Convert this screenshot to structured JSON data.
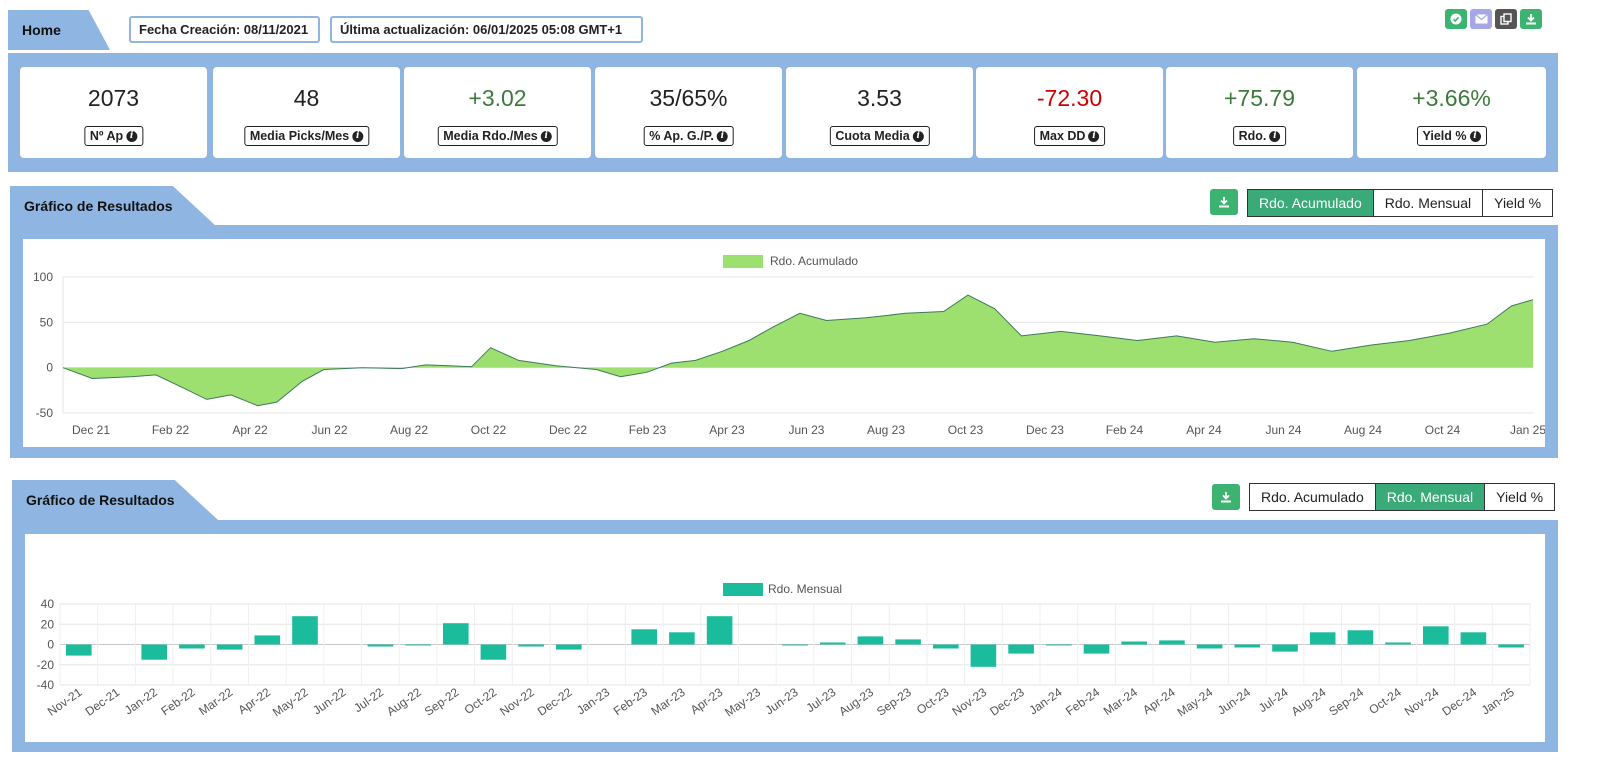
{
  "header": {
    "tab_label": "Home",
    "created": "Fecha Creación: 08/11/2021",
    "updated": "Última actualización: 06/01/2025 05:08 GMT+1"
  },
  "toolbar_icons": [
    "check-icon",
    "mail-icon",
    "copy-icon",
    "download-icon"
  ],
  "colors": {
    "panel_blue": "#8fb5e3",
    "green": "#3c7a3c",
    "red": "#cc0000",
    "accent": "#3aaa78",
    "area_fill": "#9ee06f",
    "bar_fill": "#1abc9c"
  },
  "kpis": [
    {
      "value": "2073",
      "label": "Nº Ap",
      "color": "#222222"
    },
    {
      "value": "48",
      "label": "Media Picks/Mes",
      "color": "#222222"
    },
    {
      "value": "+3.02",
      "label": "Media Rdo./Mes",
      "color": "#3c7a3c"
    },
    {
      "value": "35/65%",
      "label": "% Ap. G./P.",
      "color": "#222222"
    },
    {
      "value": "3.53",
      "label": "Cuota Media",
      "color": "#222222"
    },
    {
      "value": "-72.30",
      "label": "Max DD",
      "color": "#cc0000"
    },
    {
      "value": "+75.79",
      "label": "Rdo.",
      "color": "#3c7a3c"
    },
    {
      "value": "+3.66%",
      "label": "Yield %",
      "color": "#3c7a3c"
    }
  ],
  "section1": {
    "title": "Gráfico de Resultados",
    "buttons": [
      "Rdo. Acumulado",
      "Rdo. Mensual",
      "Yield %"
    ],
    "active": 0
  },
  "section2": {
    "title": "Gráfico de Resultados",
    "buttons": [
      "Rdo. Acumulado",
      "Rdo. Mensual",
      "Yield %"
    ],
    "active": 1
  },
  "chart_data": [
    {
      "type": "area",
      "legend": "Rdo. Acumulado",
      "legend_position": "top",
      "ylim": [
        -50,
        100
      ],
      "yticks": [
        "100",
        "50",
        "0",
        "-50"
      ],
      "x_tick_labels": [
        "Dec 21",
        "Feb 22",
        "Apr 22",
        "Jun 22",
        "Aug 22",
        "Oct 22",
        "Dec 22",
        "Feb 23",
        "Apr 23",
        "Jun 23",
        "Aug 23",
        "Oct 23",
        "Dec 23",
        "Feb 24",
        "Apr 24",
        "Jun 24",
        "Aug 24",
        "Oct 24",
        "Jan 25"
      ],
      "x": [
        "2021-11-08",
        "2021-12-01",
        "2022-01-01",
        "2022-01-20",
        "2022-02-10",
        "2022-03-01",
        "2022-03-20",
        "2022-04-10",
        "2022-04-25",
        "2022-05-15",
        "2022-06-01",
        "2022-07-01",
        "2022-08-01",
        "2022-08-20",
        "2022-09-10",
        "2022-09-25",
        "2022-10-10",
        "2022-11-01",
        "2022-12-01",
        "2023-01-01",
        "2023-01-20",
        "2023-02-10",
        "2023-03-01",
        "2023-03-20",
        "2023-04-10",
        "2023-05-01",
        "2023-05-20",
        "2023-06-10",
        "2023-07-01",
        "2023-08-01",
        "2023-09-01",
        "2023-10-01",
        "2023-10-20",
        "2023-11-10",
        "2023-12-01",
        "2024-01-01",
        "2024-02-01",
        "2024-03-01",
        "2024-04-01",
        "2024-05-01",
        "2024-06-01",
        "2024-07-01",
        "2024-08-01",
        "2024-09-01",
        "2024-10-01",
        "2024-11-01",
        "2024-12-01",
        "2024-12-20",
        "2025-01-06"
      ],
      "values": [
        0,
        -12,
        -10,
        -8,
        -22,
        -35,
        -30,
        -42,
        -38,
        -15,
        -2,
        0,
        -1,
        3,
        2,
        1,
        22,
        8,
        2,
        -2,
        -10,
        -5,
        5,
        8,
        18,
        30,
        45,
        60,
        52,
        55,
        60,
        62,
        80,
        65,
        35,
        40,
        35,
        30,
        35,
        28,
        32,
        28,
        18,
        25,
        30,
        38,
        48,
        68,
        75
      ],
      "title": "",
      "xlabel": "",
      "ylabel": "",
      "grid": true
    },
    {
      "type": "bar",
      "legend": "Rdo. Mensual",
      "legend_position": "top",
      "ylim": [
        -40,
        40
      ],
      "yticks": [
        "40",
        "20",
        "0",
        "-20",
        "-40"
      ],
      "categories": [
        "Nov-21",
        "Dec-21",
        "Jan-22",
        "Feb-22",
        "Mar-22",
        "Apr-22",
        "May-22",
        "Jun-22",
        "Jul-22",
        "Aug-22",
        "Sep-22",
        "Oct-22",
        "Nov-22",
        "Dec-22",
        "Jan-23",
        "Feb-23",
        "Mar-23",
        "Apr-23",
        "May-23",
        "Jun-23",
        "Jul-23",
        "Aug-23",
        "Sep-23",
        "Oct-23",
        "Nov-23",
        "Dec-23",
        "Jan-24",
        "Feb-24",
        "Mar-24",
        "Apr-24",
        "May-24",
        "Jun-24",
        "Jul-24",
        "Aug-24",
        "Sep-24",
        "Oct-24",
        "Nov-24",
        "Dec-24",
        "Jan-25"
      ],
      "values": [
        -11,
        0,
        -15,
        -4,
        -5,
        9,
        28,
        0,
        -2,
        -1,
        21,
        -15,
        -2,
        -5,
        0,
        15,
        12,
        28,
        0,
        -1,
        2,
        8,
        5,
        -4,
        -22,
        -9,
        -1,
        -9,
        3,
        4,
        -4,
        -3,
        -7,
        12,
        14,
        2,
        18,
        12,
        -3
      ],
      "title": "",
      "xlabel": "",
      "ylabel": "",
      "grid": true
    }
  ]
}
